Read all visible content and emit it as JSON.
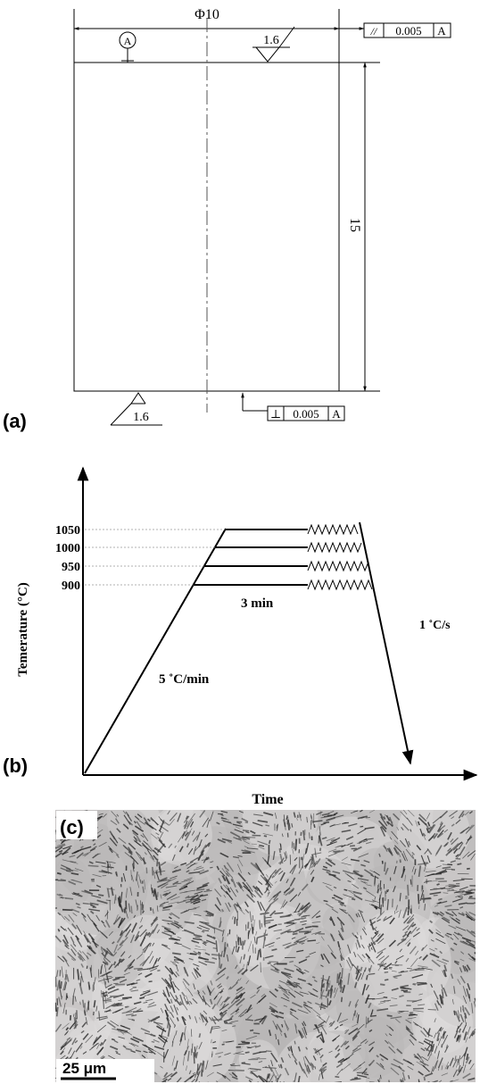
{
  "panel_a": {
    "label": "(a)",
    "diameter": "Φ10",
    "datum": "A",
    "roughness_top": "1.6",
    "roughness_bottom": "1.6",
    "length": "15",
    "parallelism": {
      "symbol": "//",
      "tolerance": "0.005",
      "datum": "A"
    },
    "perpendicularity": {
      "symbol": "⊥",
      "tolerance": "0.005",
      "datum": "A"
    }
  },
  "panel_b": {
    "label": "(b)",
    "y_label": "Temerature (°C)",
    "x_label": "Time",
    "temperatures": [
      "1050",
      "1000",
      "950",
      "900"
    ],
    "hold": "3 min",
    "heating_rate": "5 ˚C/min",
    "cooling_rate": "1 ˚C/s"
  },
  "panel_c": {
    "label": "(c)",
    "scale_bar": "25 μm"
  }
}
